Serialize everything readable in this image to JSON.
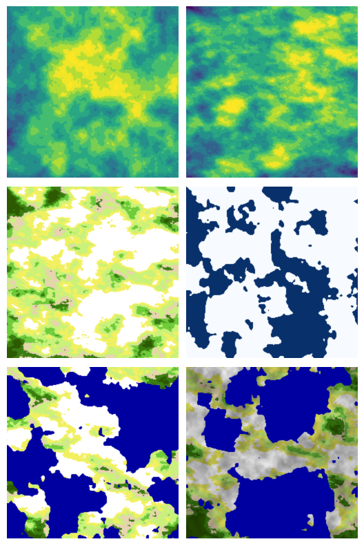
{
  "figure": {
    "panels": [
      {
        "id": "p1",
        "colormap": "viridis",
        "style": "continuous",
        "seed": 11
      },
      {
        "id": "p2",
        "colormap": "viridis",
        "style": "continuous-streaked",
        "seed": 23
      },
      {
        "id": "p3",
        "colormap": "terrain-classes",
        "style": "biome",
        "seed": 37
      },
      {
        "id": "p4",
        "colormap": "binary-blue",
        "style": "mask",
        "seed": 49
      },
      {
        "id": "p5",
        "colormap": "terrain-with-ocean",
        "style": "biome-ocean",
        "seed": 61
      },
      {
        "id": "p6",
        "colormap": "terrain-with-ocean-shaded",
        "style": "biome-ocean-shaded",
        "seed": 73
      }
    ],
    "colors": {
      "viridis": [
        "#440154",
        "#46337e",
        "#365c8d",
        "#277f8e",
        "#1fa187",
        "#4ac16d",
        "#a0da39",
        "#fde725"
      ],
      "ocean": "#0000a0",
      "mask_dark": "#08306b",
      "mask_light": "#f7fbff",
      "terrain": [
        "#2d5a00",
        "#3a7d10",
        "#2fa82a",
        "#6ecb3a",
        "#c9f27a",
        "#f2f060",
        "#e8d3b0",
        "#a0a0a0",
        "#ffffff"
      ]
    }
  }
}
